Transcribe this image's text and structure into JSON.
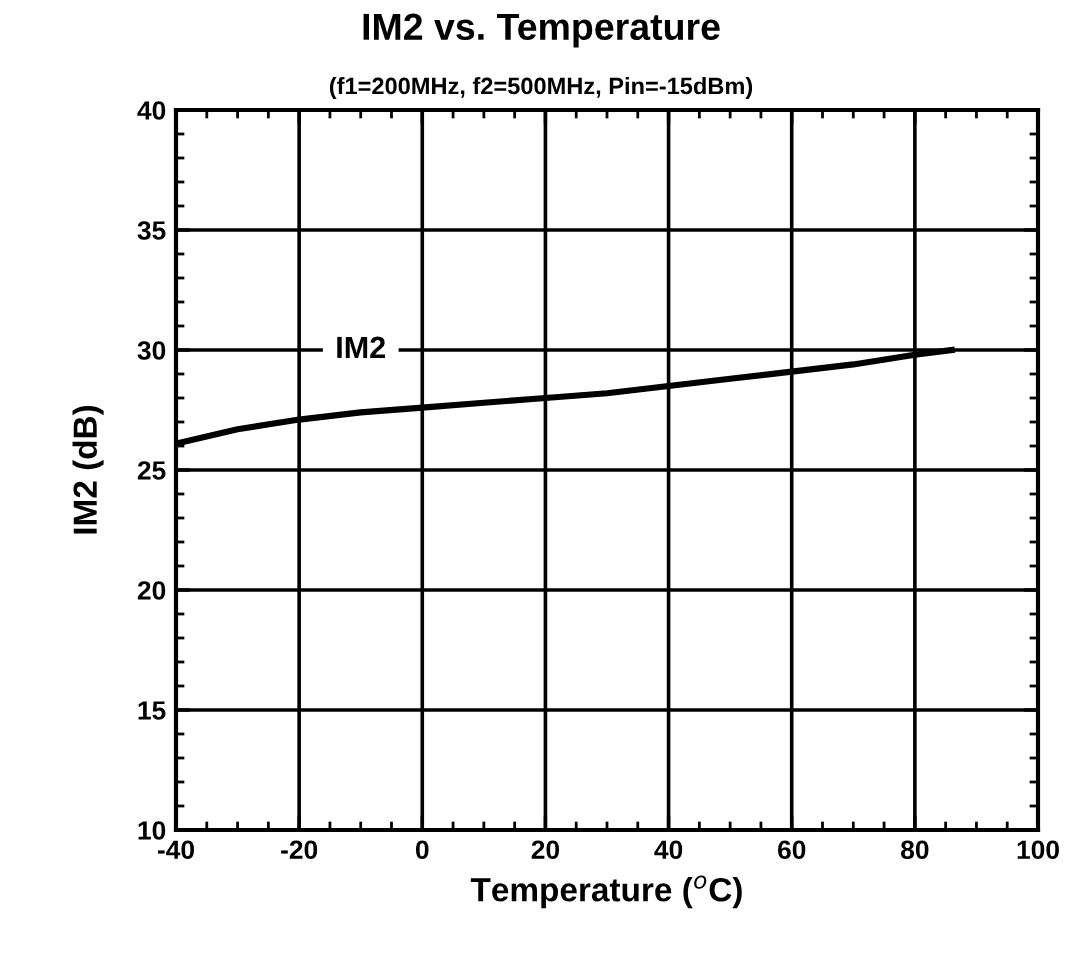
{
  "chart_data": {
    "type": "line",
    "title": "IM2 vs. Temperature",
    "subtitle": "(f1=200MHz, f2=500MHz, Pin=-15dBm)",
    "xlabel": "Temperature ($^{o}$C)",
    "ylabel": "IM2 (dB)",
    "x": [
      -40,
      -30,
      -20,
      -10,
      0,
      10,
      20,
      30,
      40,
      50,
      60,
      70,
      80,
      86
    ],
    "series": [
      {
        "name": "IM2",
        "color": "#000000",
        "values": [
          26.1,
          26.7,
          27.1,
          27.4,
          27.6,
          27.8,
          28.0,
          28.2,
          28.5,
          28.8,
          29.1,
          29.4,
          29.8,
          30.0
        ]
      }
    ],
    "xlim": [
      -40,
      100
    ],
    "xticks": [
      -40,
      -20,
      0,
      20,
      40,
      60,
      80,
      100
    ],
    "ylim": [
      10,
      40
    ],
    "yticks": [
      10,
      15,
      20,
      25,
      30,
      35,
      40
    ],
    "grid": true,
    "legend": false,
    "marker": "none",
    "line_style": "solid"
  }
}
